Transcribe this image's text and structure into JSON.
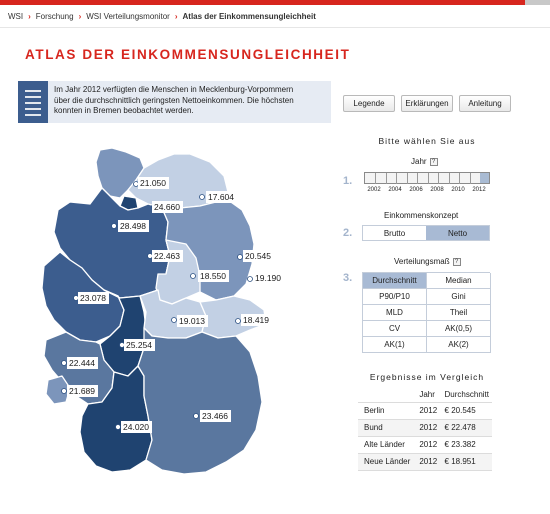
{
  "breadcrumb": [
    {
      "label": "WSI"
    },
    {
      "label": "Forschung"
    },
    {
      "label": "WSI Verteilungsmonitor"
    },
    {
      "label": "Atlas der Einkommensungleichheit"
    }
  ],
  "page": {
    "title": "ATLAS DER EINKOMMENSUNGLEICHHEIT"
  },
  "info": {
    "line1": "Im Jahr 2012 verfügten die Menschen in Mecklenburg-Vorpommern",
    "line2": "über die durchschnittlich geringsten Nettoeinkommen. Die höchsten",
    "line3": "konnten in Bremen beobachtet werden."
  },
  "buttons": {
    "legend": "Legende",
    "explanations": "Erklärungen",
    "guide": "Anleitung"
  },
  "selection": {
    "title": "Bitte wählen Sie aus",
    "step1": "1.",
    "step2": "2.",
    "step3": "3.",
    "year_label": "Jahr",
    "help": "?",
    "years": [
      "2002",
      "2004",
      "2006",
      "2008",
      "2010",
      "2012"
    ],
    "selected_year": "2012",
    "concept_label": "Einkommenskonzept",
    "concept_options": [
      "Brutto",
      "Netto"
    ],
    "concept_selected": "Netto",
    "measure_label": "Verteilungsmaß",
    "measures": [
      "Durchschnitt",
      "Median",
      "P90/P10",
      "Gini",
      "MLD",
      "Theil",
      "CV",
      "AK(0,5)",
      "AK(1)",
      "AK(2)"
    ],
    "measure_selected": "Durchschnitt"
  },
  "results": {
    "title": "Ergebnisse im Vergleich",
    "headers": [
      "",
      "Jahr",
      "Durchschnitt"
    ],
    "rows": [
      [
        "Berlin",
        "2012",
        "€ 20.545"
      ],
      [
        "Bund",
        "2012",
        "€ 22.478"
      ],
      [
        "Alte Länder",
        "2012",
        "€ 23.382"
      ],
      [
        "Neue Länder",
        "2012",
        "€ 18.951"
      ]
    ]
  },
  "colors": {
    "accent_red": "#d7261e",
    "very_light": "#c2d0e4",
    "light": "#a3b6d2",
    "mid_light": "#7c95bb",
    "mid": "#5a779f",
    "dark": "#3c5d8e",
    "very_dark": "#1f4370"
  },
  "map": {
    "values": [
      {
        "label": "21.050"
      },
      {
        "label": "24.660"
      },
      {
        "label": "17.604"
      },
      {
        "label": "28.498"
      },
      {
        "label": "22.463"
      },
      {
        "label": "20.545"
      },
      {
        "label": "18.550"
      },
      {
        "label": "19.190"
      },
      {
        "label": "23.078"
      },
      {
        "label": "19.013"
      },
      {
        "label": "18.419"
      },
      {
        "label": "25.254"
      },
      {
        "label": "22.444"
      },
      {
        "label": "21.689"
      },
      {
        "label": "24.020"
      },
      {
        "label": "23.466"
      }
    ]
  }
}
